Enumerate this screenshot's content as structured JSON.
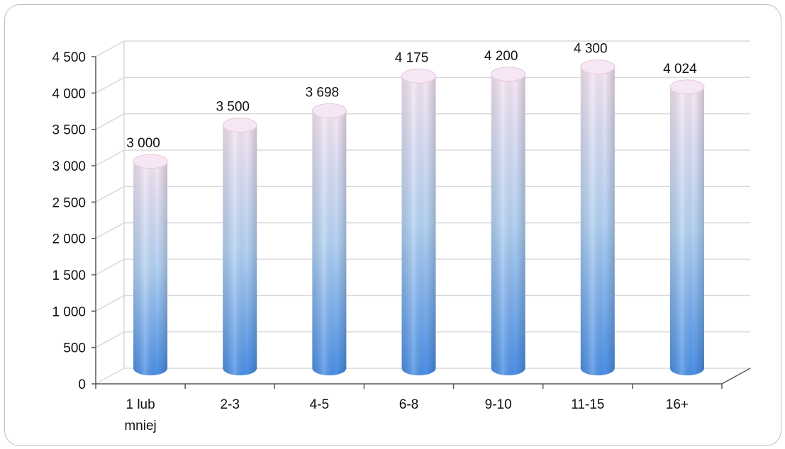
{
  "chart_data": {
    "type": "bar",
    "categories": [
      "1 lub mniej",
      "2-3",
      "4-5",
      "6-8",
      "9-10",
      "11-15",
      "16+"
    ],
    "category_lines": [
      [
        "1 lub",
        "mniej"
      ],
      [
        "2-3"
      ],
      [
        "4-5"
      ],
      [
        "6-8"
      ],
      [
        "9-10"
      ],
      [
        "11-15"
      ],
      [
        "16+"
      ]
    ],
    "values": [
      3000,
      3500,
      3698,
      4175,
      4200,
      4300,
      4024
    ],
    "value_labels": [
      "3 000",
      "3 500",
      "3 698",
      "4 175",
      "4 200",
      "4 300",
      "4 024"
    ],
    "y_ticks": [
      0,
      500,
      1000,
      1500,
      2000,
      2500,
      3000,
      3500,
      4000,
      4500
    ],
    "y_tick_labels": [
      "0",
      "500",
      "1 000",
      "1 500",
      "2 000",
      "2 500",
      "3 000",
      "3 500",
      "4 000",
      "4 500"
    ],
    "ylim": [
      0,
      4500
    ],
    "title": "",
    "xlabel": "",
    "ylabel": "",
    "grid": true,
    "legend": "none",
    "style": "3d-cylinder",
    "colors": {
      "bar_top": "#f7e6f4",
      "bar_mid": "#b3d2f3",
      "bar_bottom": "#4a8fe6",
      "grid": "#d9d9d9",
      "axis": "#595959"
    }
  }
}
